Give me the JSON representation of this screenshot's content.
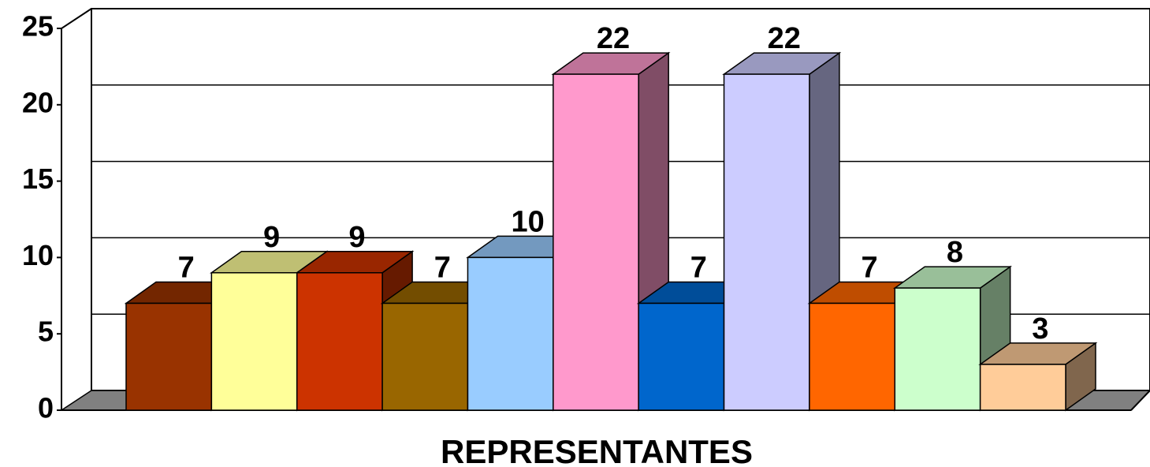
{
  "chart_data": {
    "type": "bar3d",
    "xlabel": "REPRESENTANTES",
    "categories": [
      null,
      null,
      null,
      null,
      null,
      null,
      null,
      null,
      null,
      null,
      null
    ],
    "values": [
      7,
      9,
      9,
      7,
      10,
      22,
      7,
      22,
      7,
      8,
      3
    ],
    "colors": [
      "#993300",
      "#ffff99",
      "#cc3300",
      "#996600",
      "#99ccff",
      "#ff99cc",
      "#0066cc",
      "#ccccff",
      "#ff6600",
      "#ccffcc",
      "#ffcc99"
    ],
    "ylim": [
      0,
      25
    ],
    "yticks": [
      0,
      5,
      10,
      15,
      20,
      25
    ],
    "grid": true
  }
}
